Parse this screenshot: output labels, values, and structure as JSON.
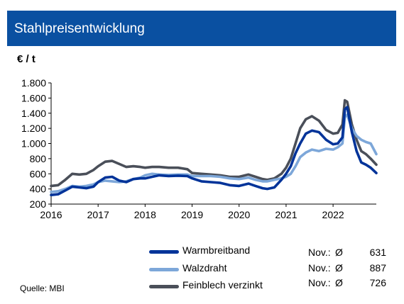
{
  "header": {
    "title": "Stahlpreisentwicklung"
  },
  "source": "Quelle: MBI",
  "chart_data": {
    "type": "line",
    "ylabel": "€ / t",
    "ylim": [
      200,
      1800
    ],
    "yticks": [
      200,
      400,
      600,
      800,
      1000,
      1200,
      1400,
      1600,
      1800
    ],
    "ytick_labels": [
      "200",
      "400",
      "600",
      "800",
      "1.000",
      "1.200",
      "1.400",
      "1.600",
      "1.800"
    ],
    "xlim": [
      2016,
      2022.92
    ],
    "xticks": [
      2016,
      2017,
      2018,
      2019,
      2020,
      2021,
      2022
    ],
    "xtick_labels": [
      "2016",
      "2017",
      "2018",
      "2019",
      "2020",
      "2021",
      "2022"
    ],
    "grid": false,
    "legend": "bottom",
    "series": [
      {
        "name": "Warmbreitband",
        "color": "#003399",
        "summary": {
          "label": "Nov.:",
          "symbol": "Ø",
          "value": "631"
        },
        "points": [
          [
            2016.0,
            320
          ],
          [
            2016.15,
            330
          ],
          [
            2016.3,
            380
          ],
          [
            2016.45,
            430
          ],
          [
            2016.6,
            420
          ],
          [
            2016.75,
            410
          ],
          [
            2016.9,
            430
          ],
          [
            2017.0,
            490
          ],
          [
            2017.15,
            550
          ],
          [
            2017.3,
            560
          ],
          [
            2017.45,
            510
          ],
          [
            2017.6,
            490
          ],
          [
            2017.75,
            530
          ],
          [
            2017.9,
            540
          ],
          [
            2018.0,
            540
          ],
          [
            2018.15,
            560
          ],
          [
            2018.3,
            580
          ],
          [
            2018.5,
            570
          ],
          [
            2018.7,
            575
          ],
          [
            2018.9,
            570
          ],
          [
            2019.0,
            540
          ],
          [
            2019.2,
            500
          ],
          [
            2019.4,
            490
          ],
          [
            2019.6,
            480
          ],
          [
            2019.8,
            450
          ],
          [
            2020.0,
            440
          ],
          [
            2020.2,
            470
          ],
          [
            2020.35,
            440
          ],
          [
            2020.5,
            410
          ],
          [
            2020.6,
            400
          ],
          [
            2020.75,
            420
          ],
          [
            2020.9,
            520
          ],
          [
            2021.0,
            600
          ],
          [
            2021.1,
            700
          ],
          [
            2021.2,
            870
          ],
          [
            2021.3,
            1000
          ],
          [
            2021.42,
            1130
          ],
          [
            2021.55,
            1170
          ],
          [
            2021.7,
            1150
          ],
          [
            2021.85,
            1050
          ],
          [
            2022.0,
            990
          ],
          [
            2022.1,
            1000
          ],
          [
            2022.2,
            1080
          ],
          [
            2022.25,
            1450
          ],
          [
            2022.3,
            1480
          ],
          [
            2022.4,
            1150
          ],
          [
            2022.5,
            900
          ],
          [
            2022.6,
            750
          ],
          [
            2022.7,
            720
          ],
          [
            2022.8,
            680
          ],
          [
            2022.92,
            610
          ]
        ]
      },
      {
        "name": "Walzdraht",
        "color": "#7da7d9",
        "summary": {
          "label": "Nov.:",
          "symbol": "Ø",
          "value": "887"
        },
        "points": [
          [
            2016.0,
            360
          ],
          [
            2016.15,
            370
          ],
          [
            2016.3,
            400
          ],
          [
            2016.45,
            440
          ],
          [
            2016.6,
            430
          ],
          [
            2016.75,
            440
          ],
          [
            2016.9,
            460
          ],
          [
            2017.0,
            490
          ],
          [
            2017.15,
            510
          ],
          [
            2017.3,
            500
          ],
          [
            2017.45,
            490
          ],
          [
            2017.6,
            500
          ],
          [
            2017.75,
            530
          ],
          [
            2017.9,
            550
          ],
          [
            2018.0,
            580
          ],
          [
            2018.15,
            600
          ],
          [
            2018.3,
            590
          ],
          [
            2018.5,
            585
          ],
          [
            2018.7,
            590
          ],
          [
            2018.9,
            590
          ],
          [
            2019.0,
            570
          ],
          [
            2019.2,
            570
          ],
          [
            2019.4,
            570
          ],
          [
            2019.6,
            560
          ],
          [
            2019.8,
            540
          ],
          [
            2020.0,
            530
          ],
          [
            2020.2,
            550
          ],
          [
            2020.35,
            520
          ],
          [
            2020.5,
            500
          ],
          [
            2020.6,
            500
          ],
          [
            2020.75,
            520
          ],
          [
            2020.9,
            540
          ],
          [
            2021.0,
            560
          ],
          [
            2021.1,
            600
          ],
          [
            2021.2,
            700
          ],
          [
            2021.3,
            820
          ],
          [
            2021.42,
            880
          ],
          [
            2021.55,
            920
          ],
          [
            2021.7,
            900
          ],
          [
            2021.85,
            930
          ],
          [
            2022.0,
            920
          ],
          [
            2022.1,
            950
          ],
          [
            2022.2,
            1000
          ],
          [
            2022.25,
            1350
          ],
          [
            2022.3,
            1380
          ],
          [
            2022.4,
            1200
          ],
          [
            2022.5,
            1100
          ],
          [
            2022.6,
            1050
          ],
          [
            2022.7,
            1020
          ],
          [
            2022.8,
            1000
          ],
          [
            2022.92,
            860
          ]
        ]
      },
      {
        "name": "Feinblech verzinkt",
        "color": "#4a4f59",
        "summary": {
          "label": "Nov.:",
          "symbol": "Ø",
          "value": "726"
        },
        "points": [
          [
            2016.0,
            440
          ],
          [
            2016.15,
            450
          ],
          [
            2016.3,
            520
          ],
          [
            2016.45,
            600
          ],
          [
            2016.6,
            590
          ],
          [
            2016.75,
            600
          ],
          [
            2016.9,
            650
          ],
          [
            2017.0,
            700
          ],
          [
            2017.15,
            760
          ],
          [
            2017.3,
            770
          ],
          [
            2017.45,
            730
          ],
          [
            2017.6,
            690
          ],
          [
            2017.75,
            700
          ],
          [
            2017.9,
            690
          ],
          [
            2018.0,
            680
          ],
          [
            2018.15,
            690
          ],
          [
            2018.3,
            690
          ],
          [
            2018.5,
            680
          ],
          [
            2018.7,
            680
          ],
          [
            2018.9,
            660
          ],
          [
            2019.0,
            610
          ],
          [
            2019.2,
            600
          ],
          [
            2019.4,
            590
          ],
          [
            2019.6,
            580
          ],
          [
            2019.8,
            560
          ],
          [
            2020.0,
            560
          ],
          [
            2020.2,
            590
          ],
          [
            2020.35,
            560
          ],
          [
            2020.5,
            530
          ],
          [
            2020.6,
            520
          ],
          [
            2020.75,
            540
          ],
          [
            2020.9,
            600
          ],
          [
            2021.0,
            680
          ],
          [
            2021.1,
            800
          ],
          [
            2021.2,
            1000
          ],
          [
            2021.3,
            1200
          ],
          [
            2021.42,
            1320
          ],
          [
            2021.55,
            1360
          ],
          [
            2021.7,
            1300
          ],
          [
            2021.85,
            1180
          ],
          [
            2022.0,
            1130
          ],
          [
            2022.1,
            1140
          ],
          [
            2022.2,
            1250
          ],
          [
            2022.25,
            1570
          ],
          [
            2022.3,
            1550
          ],
          [
            2022.4,
            1250
          ],
          [
            2022.5,
            1050
          ],
          [
            2022.6,
            900
          ],
          [
            2022.7,
            860
          ],
          [
            2022.8,
            800
          ],
          [
            2022.92,
            720
          ]
        ]
      }
    ]
  }
}
